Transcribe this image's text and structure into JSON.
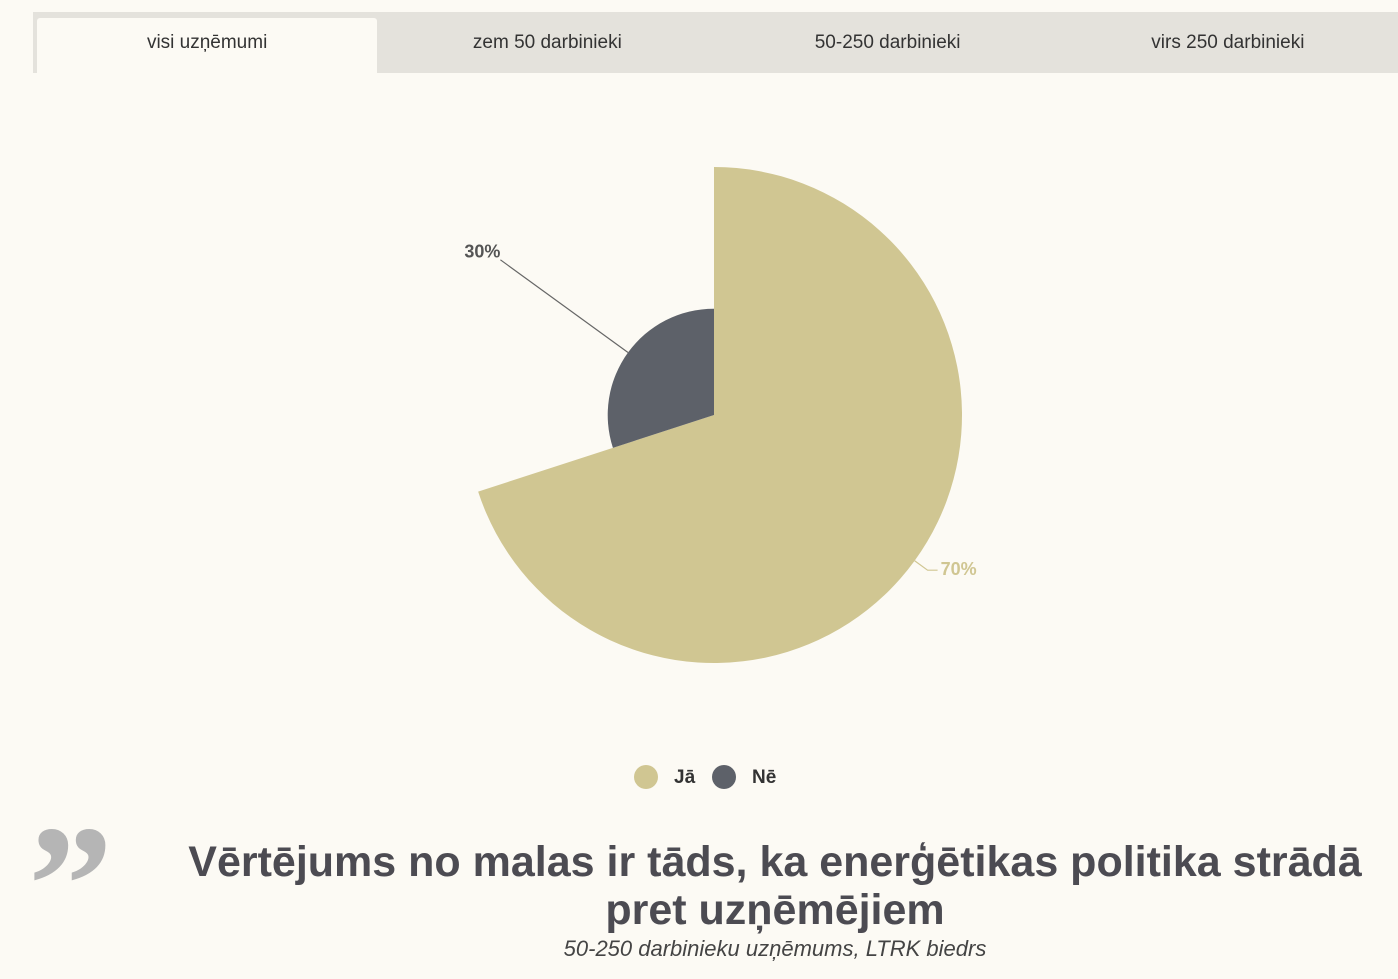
{
  "tabs": [
    "visi uzņēmumi",
    "zem 50 darbinieki",
    "50-250 darbinieki",
    "virs 250 darbinieki"
  ],
  "chart_data": {
    "type": "pie",
    "categories": [
      "Jā",
      "Nē"
    ],
    "values": [
      70,
      30
    ],
    "value_labels": [
      "70%",
      "30%"
    ],
    "colors": [
      "#d0c692",
      "#5d6169"
    ],
    "legend": "bottom",
    "variable_radius": true
  },
  "quote": {
    "text": "Vērtējums no malas ir tāds, ka enerģētikas politika strādā pret uzņēmējiem",
    "attribution": "50-250 darbinieku uzņēmums, LTRK biedrs"
  }
}
